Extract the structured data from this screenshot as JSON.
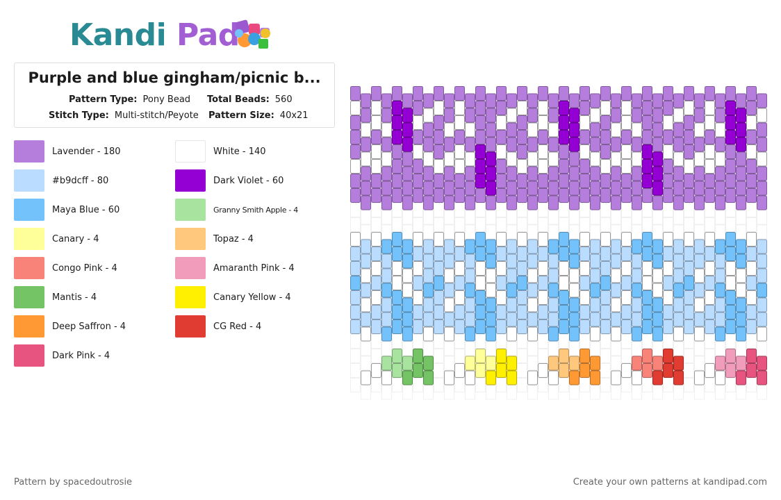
{
  "brand": {
    "part1": "Kandi",
    "part2": "Pad"
  },
  "pattern": {
    "title": "Purple and blue gingham/picnic b...",
    "type_label": "Pattern Type:",
    "type_value": "Pony Bead",
    "total_label": "Total Beads:",
    "total_value": "560",
    "stitch_label": "Stitch Type:",
    "stitch_value": "Multi-stitch/Peyote",
    "size_label": "Pattern Size:",
    "size_value": "40x21"
  },
  "legend": [
    {
      "label": "Lavender - 180",
      "color": "#b57edc"
    },
    {
      "label": "White - 140",
      "color": "#ffffff"
    },
    {
      "label": "#b9dcff - 80",
      "color": "#b9dcff"
    },
    {
      "label": "Dark Violet - 60",
      "color": "#9400d3"
    },
    {
      "label": "Maya Blue - 60",
      "color": "#73c2fb"
    },
    {
      "label": "Granny Smith Apple - 4",
      "color": "#a8e4a0"
    },
    {
      "label": "Canary - 4",
      "color": "#ffff99"
    },
    {
      "label": "Topaz - 4",
      "color": "#ffc87c"
    },
    {
      "label": "Congo Pink - 4",
      "color": "#f88379"
    },
    {
      "label": "Amaranth Pink - 4",
      "color": "#f19cbb"
    },
    {
      "label": "Mantis - 4",
      "color": "#74c365"
    },
    {
      "label": "Canary Yellow - 4",
      "color": "#ffef00"
    },
    {
      "label": "Deep Saffron - 4",
      "color": "#ff9933"
    },
    {
      "label": "CG Red - 4",
      "color": "#e03c31"
    },
    {
      "label": "Dark Pink - 4",
      "color": "#e75480"
    }
  ],
  "footer": {
    "credit": "Pattern by spacedoutrosie",
    "cta": "Create your own patterns at kandipad.com"
  }
}
